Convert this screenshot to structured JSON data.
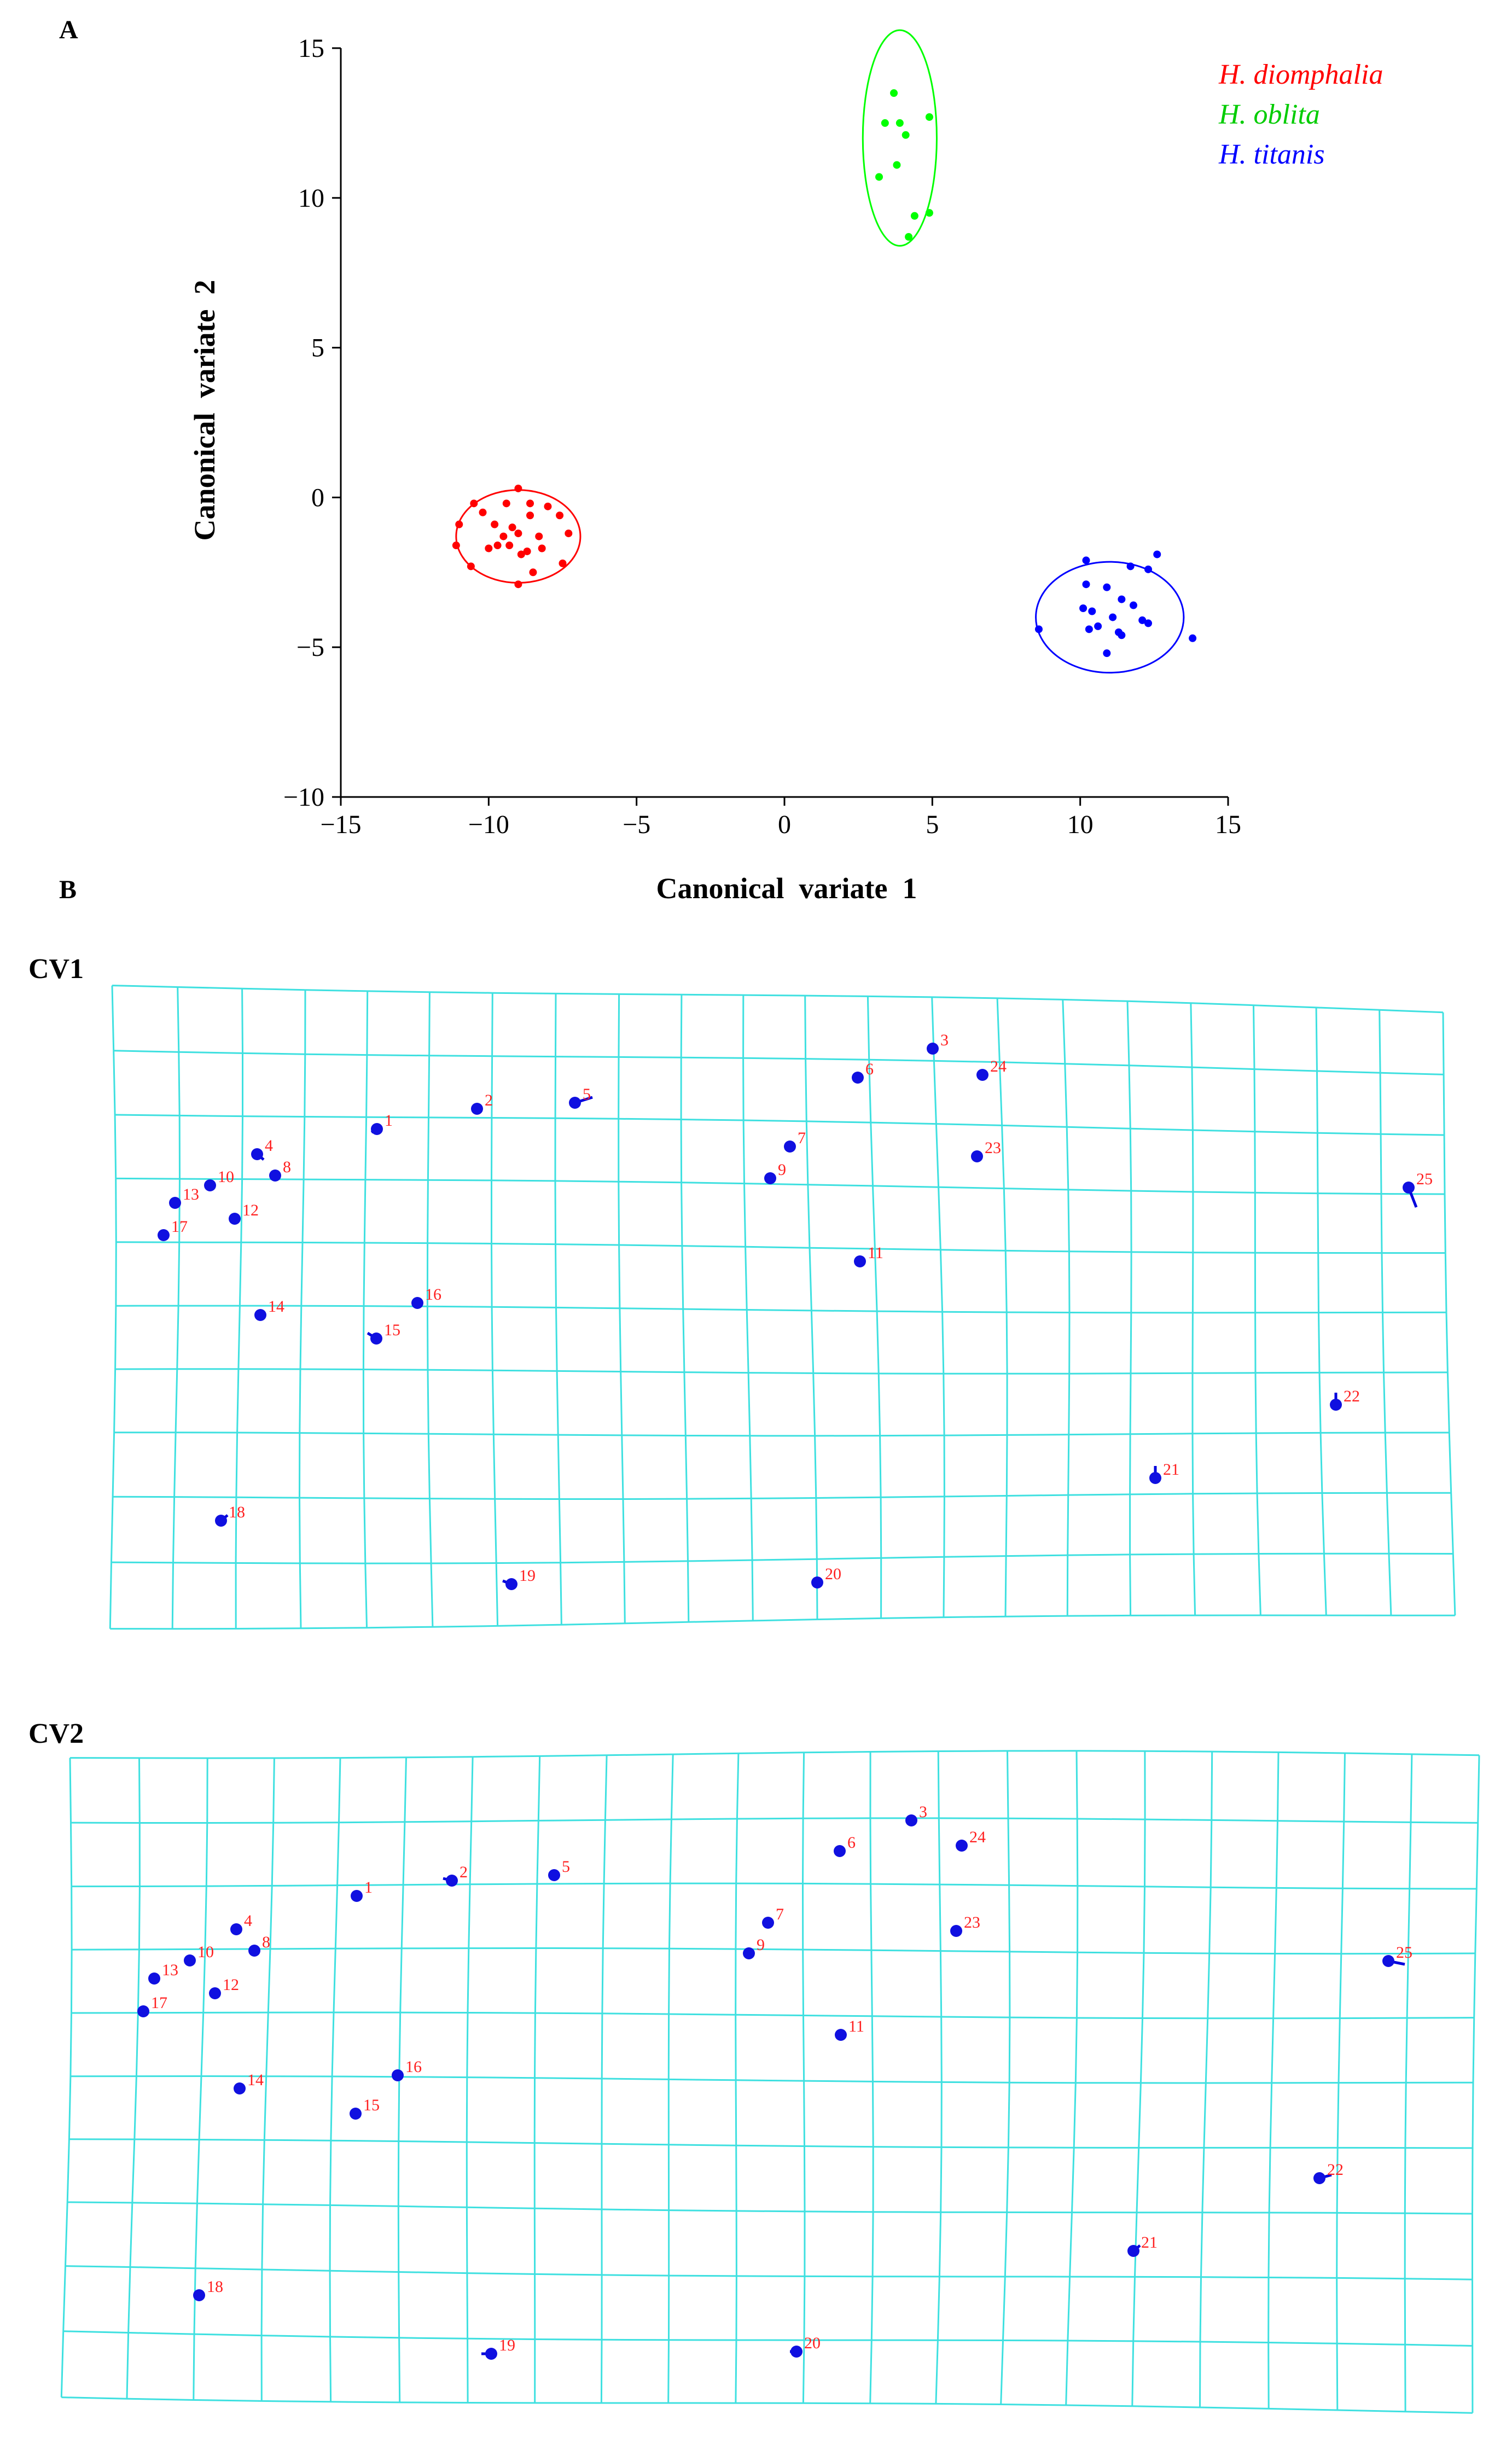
{
  "chart_data": [
    {
      "panel_label": "A",
      "type": "scatter",
      "xlabel": "Canonical  variate  1",
      "ylabel": "Canonical  variate  2",
      "xlim": [
        -15,
        15
      ],
      "ylim": [
        -10,
        15
      ],
      "xticks": [
        -15,
        -10,
        -5,
        0,
        5,
        10,
        15
      ],
      "yticks": [
        -10,
        -5,
        0,
        5,
        10,
        15
      ],
      "xtick_labels": [
        "−15",
        "−10",
        "−5",
        "0",
        "5",
        "10",
        "15"
      ],
      "ytick_labels": [
        "−10",
        "−5",
        "0",
        "5",
        "10",
        "15"
      ],
      "legend_position": "top-right",
      "series": [
        {
          "name": "H. diomphalia",
          "color": "#ff0000",
          "ellipse": {
            "cx": -9.0,
            "cy": -1.3,
            "rx": 2.1,
            "ry": 1.55
          },
          "points": [
            [
              -9.0,
              0.3
            ],
            [
              -10.5,
              -0.2
            ],
            [
              -10.2,
              -0.5
            ],
            [
              -9.4,
              -0.2
            ],
            [
              -8.6,
              -0.2
            ],
            [
              -8.0,
              -0.3
            ],
            [
              -7.6,
              -0.6
            ],
            [
              -8.6,
              -0.6
            ],
            [
              -9.8,
              -0.9
            ],
            [
              -11.0,
              -0.9
            ],
            [
              -9.2,
              -1.0
            ],
            [
              -9.5,
              -1.3
            ],
            [
              -9.0,
              -1.2
            ],
            [
              -8.3,
              -1.3
            ],
            [
              -7.3,
              -1.2
            ],
            [
              -10.0,
              -1.7
            ],
            [
              -9.7,
              -1.6
            ],
            [
              -9.3,
              -1.6
            ],
            [
              -8.7,
              -1.8
            ],
            [
              -8.9,
              -1.9
            ],
            [
              -8.2,
              -1.7
            ],
            [
              -11.1,
              -1.6
            ],
            [
              -10.6,
              -2.3
            ],
            [
              -7.5,
              -2.2
            ],
            [
              -8.5,
              -2.5
            ],
            [
              -9.0,
              -2.9
            ]
          ]
        },
        {
          "name": "H. oblita",
          "color": "#00ff00",
          "ellipse": {
            "cx": 3.9,
            "cy": 12.0,
            "rx": 1.25,
            "ry": 3.6
          },
          "points": [
            [
              3.7,
              13.5
            ],
            [
              3.4,
              12.5
            ],
            [
              3.9,
              12.5
            ],
            [
              4.9,
              12.7
            ],
            [
              4.1,
              12.1
            ],
            [
              3.8,
              11.1
            ],
            [
              3.2,
              10.7
            ],
            [
              4.4,
              9.4
            ],
            [
              4.9,
              9.5
            ],
            [
              4.2,
              8.7
            ]
          ]
        },
        {
          "name": "H. titanis",
          "color": "#0000ff",
          "ellipse": {
            "cx": 11.0,
            "cy": -4.0,
            "rx": 2.5,
            "ry": 1.85
          },
          "points": [
            [
              10.2,
              -2.1
            ],
            [
              12.6,
              -1.9
            ],
            [
              11.7,
              -2.3
            ],
            [
              12.3,
              -2.4
            ],
            [
              10.2,
              -2.9
            ],
            [
              10.9,
              -3.0
            ],
            [
              11.4,
              -3.4
            ],
            [
              11.8,
              -3.6
            ],
            [
              10.1,
              -3.7
            ],
            [
              10.4,
              -3.8
            ],
            [
              11.1,
              -4.0
            ],
            [
              12.1,
              -4.1
            ],
            [
              12.3,
              -4.2
            ],
            [
              10.6,
              -4.3
            ],
            [
              10.3,
              -4.4
            ],
            [
              8.6,
              -4.4
            ],
            [
              11.3,
              -4.5
            ],
            [
              11.4,
              -4.6
            ],
            [
              13.8,
              -4.7
            ],
            [
              10.9,
              -5.2
            ]
          ]
        }
      ]
    },
    {
      "panel_label": "B",
      "title": "CV1",
      "type": "deformation-grid",
      "landmarks": [
        1,
        2,
        3,
        4,
        5,
        6,
        7,
        8,
        9,
        10,
        11,
        12,
        13,
        14,
        15,
        16,
        17,
        18,
        19,
        20,
        21,
        22,
        23,
        24,
        25
      ]
    },
    {
      "title": "CV2",
      "type": "deformation-grid",
      "landmarks": [
        1,
        2,
        3,
        4,
        5,
        6,
        7,
        8,
        9,
        10,
        11,
        12,
        13,
        14,
        15,
        16,
        17,
        18,
        19,
        20,
        21,
        22,
        23,
        24,
        25
      ]
    }
  ]
}
